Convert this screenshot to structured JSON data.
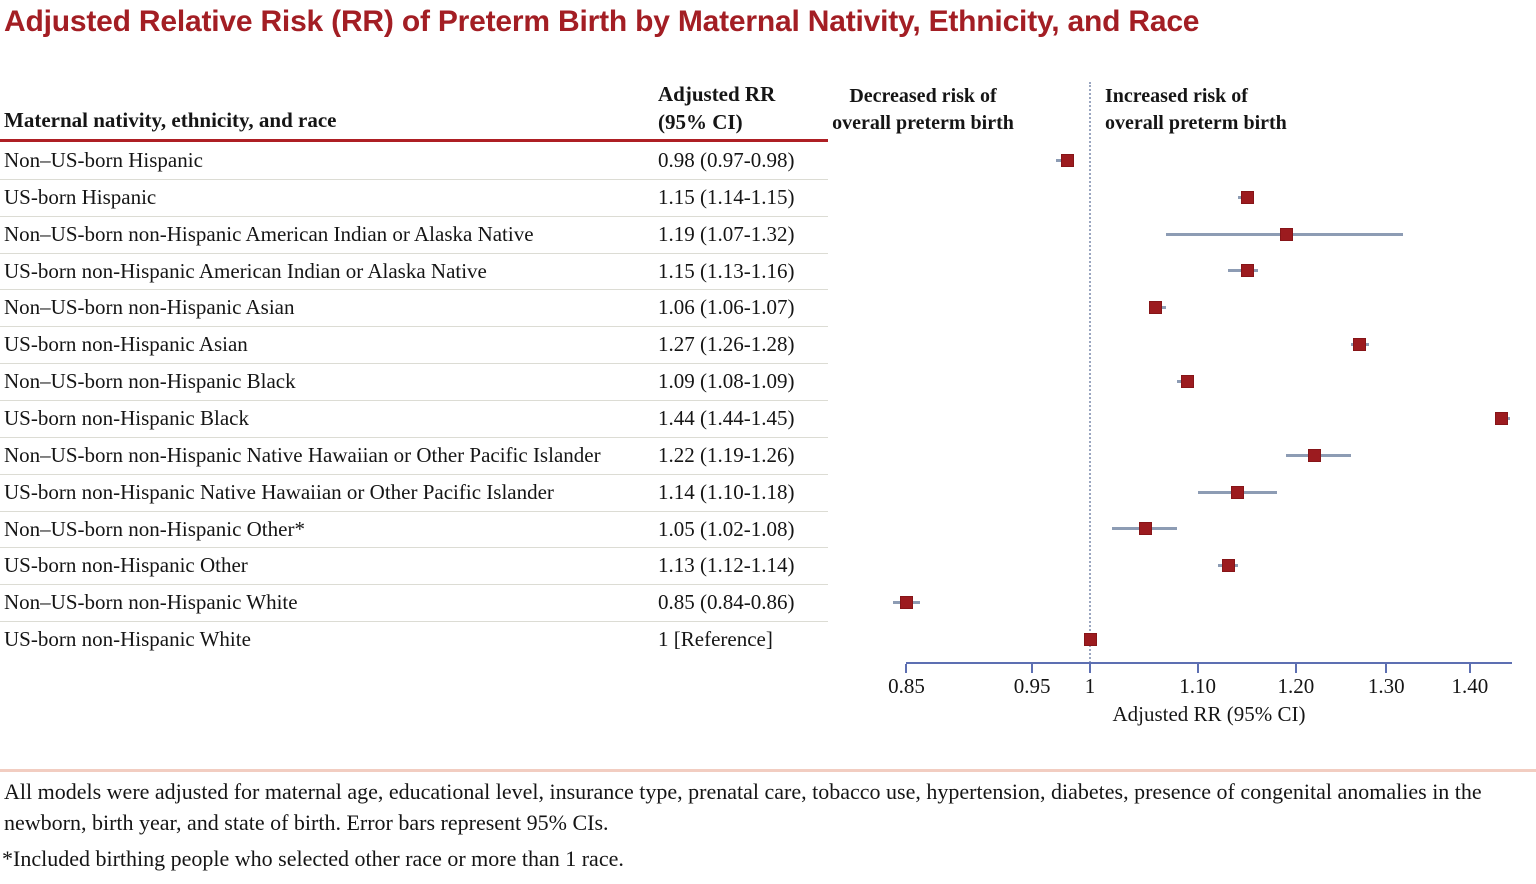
{
  "title": "Adjusted Relative Risk (RR) of Preterm Birth by Maternal Nativity, Ethnicity, and Race",
  "table": {
    "col1_header": "Maternal nativity, ethnicity, and race",
    "col2_header_line1": "Adjusted RR",
    "col2_header_line2": "(95% CI)",
    "rows": [
      {
        "label": "Non–US-born Hispanic",
        "value": "0.98 (0.97-0.98)"
      },
      {
        "label": "US-born Hispanic",
        "value": "1.15 (1.14-1.15)"
      },
      {
        "label": "Non–US-born non-Hispanic American Indian or Alaska Native",
        "value": "1.19 (1.07-1.32)"
      },
      {
        "label": "US-born non-Hispanic American Indian or Alaska Native",
        "value": "1.15 (1.13-1.16)"
      },
      {
        "label": "Non–US-born non-Hispanic Asian",
        "value": "1.06 (1.06-1.07)"
      },
      {
        "label": "US-born non-Hispanic Asian",
        "value": "1.27 (1.26-1.28)"
      },
      {
        "label": "Non–US-born non-Hispanic Black",
        "value": "1.09 (1.08-1.09)"
      },
      {
        "label": "US-born non-Hispanic Black",
        "value": "1.44 (1.44-1.45)"
      },
      {
        "label": "Non–US-born non-Hispanic Native Hawaiian or Other Pacific Islander",
        "value": "1.22 (1.19-1.26)"
      },
      {
        "label": "US-born non-Hispanic Native Hawaiian or Other Pacific Islander",
        "value": "1.14 (1.10-1.18)"
      },
      {
        "label": "Non–US-born non-Hispanic Other*",
        "value": "1.05 (1.02-1.08)"
      },
      {
        "label": "US-born non-Hispanic Other",
        "value": "1.13 (1.12-1.14)"
      },
      {
        "label": "Non–US-born non-Hispanic White",
        "value": "0.85 (0.84-0.86)"
      },
      {
        "label": "US-born non-Hispanic White",
        "value": "1 [Reference]"
      }
    ]
  },
  "plot": {
    "left_header_line1": "Decreased risk of",
    "left_header_line2": "overall preterm birth",
    "right_header_line1": "Increased risk of",
    "right_header_line2": "overall preterm birth",
    "axis_label": "Adjusted RR  (95% CI)"
  },
  "footnotes": {
    "adjustment_note": "All models were adjusted for maternal age, educational level, insurance type, prenatal care, tobacco use, hypertension, diabetes, presence of congenital anomalies in the newborn, birth year, and state of birth. Error bars represent 95% CIs.",
    "asterisk_note": "*Included birthing people who selected other race or more than 1 race."
  },
  "colors": {
    "title_red": "#A31E24",
    "header_rule_red": "#AE1F24",
    "marker_red": "#9C1B1F",
    "axis_blue": "#5D6FB2",
    "whisker_gray_blue": "#8D9CB4",
    "row_separator": "#DCDCD4",
    "footnote_divider_pink": "#F2CDC1",
    "text": "#151515"
  },
  "chart_data": {
    "type": "scatter",
    "subtype": "forest-plot",
    "x_scale": "log",
    "xlim": [
      0.85,
      1.453
    ],
    "x_ticks": [
      0.85,
      0.95,
      1,
      1.1,
      1.2,
      1.3,
      1.4
    ],
    "x_tick_labels": [
      "0.85",
      "0.95",
      "1",
      "1.10",
      "1.20",
      "1.30",
      "1.40"
    ],
    "reference_line_x": 1,
    "xlabel": "Adjusted RR  (95% CI)",
    "grid": false,
    "legend": false,
    "points": [
      {
        "label": "Non–US-born Hispanic",
        "rr": 0.98,
        "ci_low": 0.97,
        "ci_high": 0.98
      },
      {
        "label": "US-born Hispanic",
        "rr": 1.15,
        "ci_low": 1.14,
        "ci_high": 1.15
      },
      {
        "label": "Non–US-born non-Hispanic American Indian or Alaska Native",
        "rr": 1.19,
        "ci_low": 1.07,
        "ci_high": 1.32
      },
      {
        "label": "US-born non-Hispanic American Indian or Alaska Native",
        "rr": 1.15,
        "ci_low": 1.13,
        "ci_high": 1.16
      },
      {
        "label": "Non–US-born non-Hispanic Asian",
        "rr": 1.06,
        "ci_low": 1.06,
        "ci_high": 1.07
      },
      {
        "label": "US-born non-Hispanic Asian",
        "rr": 1.27,
        "ci_low": 1.26,
        "ci_high": 1.28
      },
      {
        "label": "Non–US-born non-Hispanic Black",
        "rr": 1.09,
        "ci_low": 1.08,
        "ci_high": 1.09
      },
      {
        "label": "US-born non-Hispanic Black",
        "rr": 1.44,
        "ci_low": 1.44,
        "ci_high": 1.45
      },
      {
        "label": "Non–US-born non-Hispanic Native Hawaiian or Other Pacific Islander",
        "rr": 1.22,
        "ci_low": 1.19,
        "ci_high": 1.26
      },
      {
        "label": "US-born non-Hispanic Native Hawaiian or Other Pacific Islander",
        "rr": 1.14,
        "ci_low": 1.1,
        "ci_high": 1.18
      },
      {
        "label": "Non–US-born non-Hispanic Other*",
        "rr": 1.05,
        "ci_low": 1.02,
        "ci_high": 1.08
      },
      {
        "label": "US-born non-Hispanic Other",
        "rr": 1.13,
        "ci_low": 1.12,
        "ci_high": 1.14
      },
      {
        "label": "Non–US-born non-Hispanic White",
        "rr": 0.85,
        "ci_low": 0.84,
        "ci_high": 0.86
      },
      {
        "label": "US-born non-Hispanic White",
        "rr": 1,
        "ci_low": null,
        "ci_high": null
      }
    ]
  }
}
